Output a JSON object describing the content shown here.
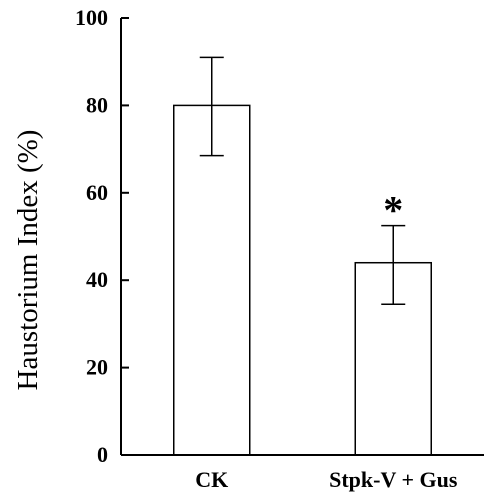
{
  "chart_data": {
    "type": "bar",
    "title": "",
    "xlabel": "",
    "ylabel": "Haustorium Index (%)",
    "categories": [
      "CK",
      "Stpk-V + Gus"
    ],
    "values": [
      80,
      44
    ],
    "error_low": [
      68.5,
      34.5
    ],
    "error_high": [
      91,
      52.5
    ],
    "significance": [
      "",
      "*"
    ],
    "ylim": [
      0,
      100
    ],
    "yticks": [
      0,
      20,
      40,
      60,
      80,
      100
    ],
    "grid": false,
    "legend": "none",
    "colors": {
      "bar_fill": "#ffffff",
      "bar_stroke": "#000000",
      "axis": "#000000"
    }
  }
}
